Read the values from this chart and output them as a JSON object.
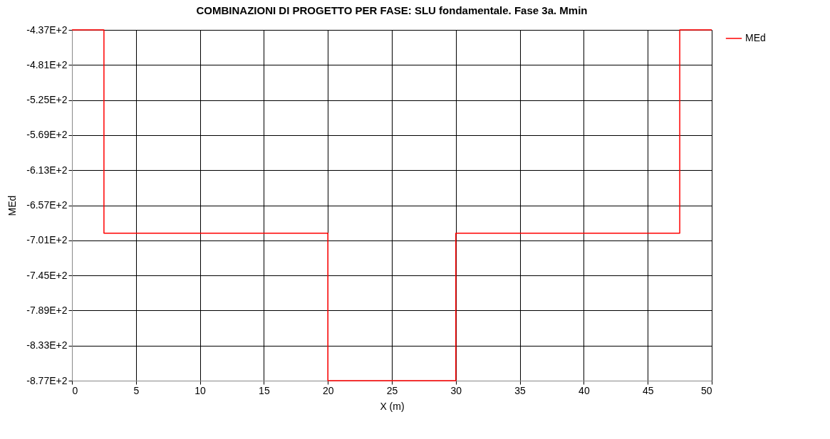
{
  "chart_data": {
    "type": "step",
    "title": "COMBINAZIONI DI PROGETTO PER FASE: SLU fondamentale. Fase 3a. Mmin",
    "xlabel": "X (m)",
    "ylabel": "MEd",
    "x": [
      0,
      2.5,
      20,
      30,
      47.5,
      50
    ],
    "series": [
      {
        "name": "MEd",
        "color": "#ff0000",
        "values": [
          -437,
          -692,
          -877,
          -692,
          -437,
          -437
        ]
      }
    ],
    "xlim": [
      0,
      50
    ],
    "xticks": [
      0,
      5,
      10,
      15,
      20,
      25,
      30,
      35,
      40,
      45,
      50
    ],
    "ylim": [
      -877,
      -437
    ],
    "yticks": [
      {
        "value": -437,
        "label": "-4.37E+2"
      },
      {
        "value": -481,
        "label": "-4.81E+2"
      },
      {
        "value": -525,
        "label": "-5.25E+2"
      },
      {
        "value": -569,
        "label": "-5.69E+2"
      },
      {
        "value": -613,
        "label": "-6.13E+2"
      },
      {
        "value": -657,
        "label": "-6.57E+2"
      },
      {
        "value": -701,
        "label": "-7.01E+2"
      },
      {
        "value": -745,
        "label": "-7.45E+2"
      },
      {
        "value": -789,
        "label": "-7.89E+2"
      },
      {
        "value": -833,
        "label": "-8.33E+2"
      },
      {
        "value": -877,
        "label": "-8.77E+2"
      }
    ],
    "grid": true,
    "legend": "top right"
  }
}
